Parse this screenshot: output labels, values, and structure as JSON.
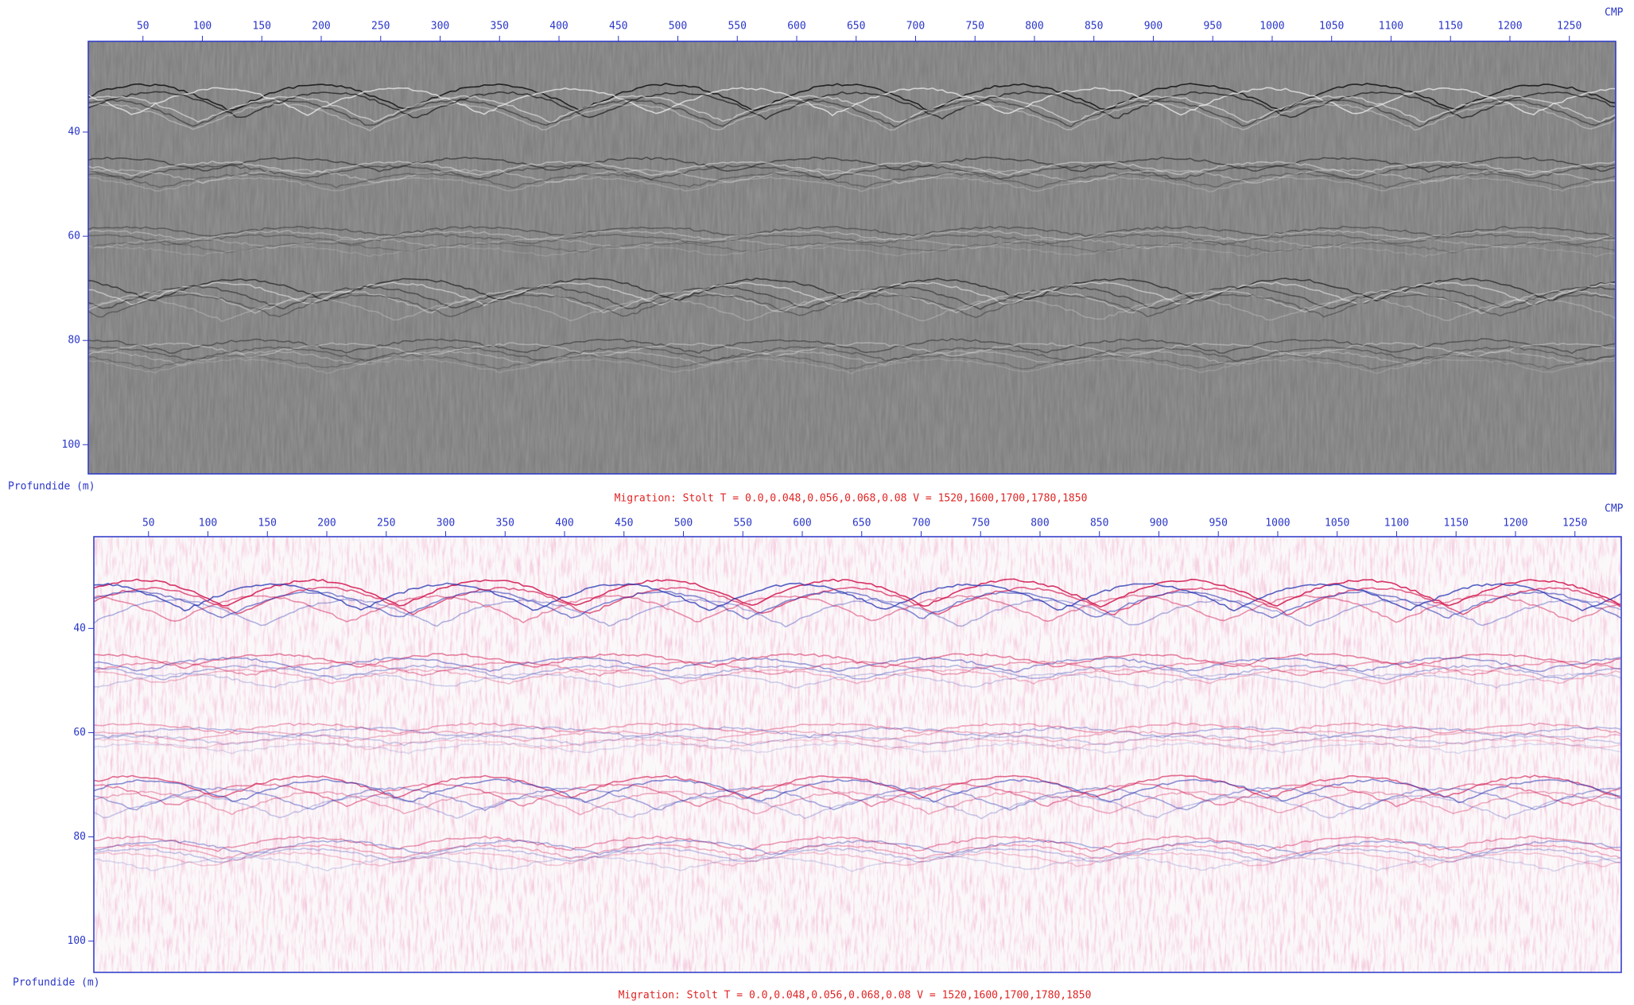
{
  "chart_data": [
    {
      "type": "image",
      "colormap": "gray",
      "x_label": "CMP",
      "y_label": "Profundide (m)",
      "caption": "Migration: Stolt  T = 0.0,0.048,0.056,0.068,0.08  V = 1520,1600,1700,1780,1850",
      "xlim": [
        4,
        1289
      ],
      "xticks": [
        50,
        100,
        150,
        200,
        250,
        300,
        350,
        400,
        450,
        500,
        550,
        600,
        650,
        700,
        750,
        800,
        850,
        900,
        950,
        1000,
        1050,
        1100,
        1150,
        1200,
        1250
      ],
      "ylim": [
        22.6,
        105.6
      ],
      "yticks": [
        40,
        60,
        80,
        100
      ],
      "axis_color": "#2a36c8",
      "caption_color": "#e02424"
    },
    {
      "type": "image",
      "colormap": "seismic",
      "x_label": "CMP",
      "y_label": "Profundide (m)",
      "caption": "Migration: Stolt  T = 0.0,0.048,0.056,0.068,0.08  V = 1520,1600,1700,1780,1850",
      "xlim": [
        4,
        1289
      ],
      "xticks": [
        50,
        100,
        150,
        200,
        250,
        300,
        350,
        400,
        450,
        500,
        550,
        600,
        650,
        700,
        750,
        800,
        850,
        900,
        950,
        1000,
        1050,
        1100,
        1150,
        1200,
        1250
      ],
      "ylim": [
        22.4,
        106
      ],
      "yticks": [
        40,
        60,
        80,
        100
      ],
      "axis_color": "#2a36c8",
      "caption_color": "#e02424"
    }
  ]
}
